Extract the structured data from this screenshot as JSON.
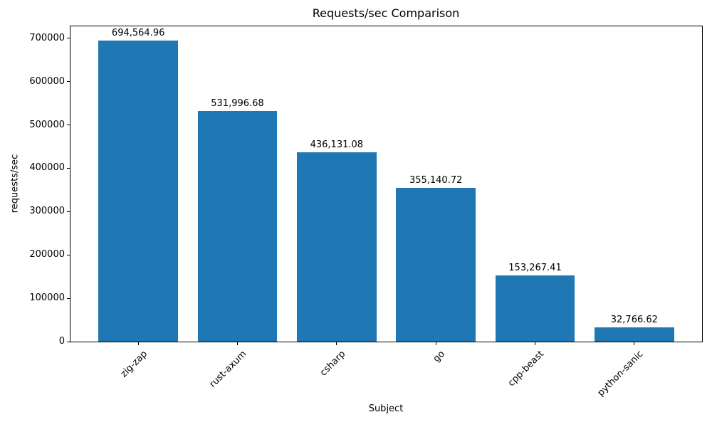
{
  "chart_data": {
    "type": "bar",
    "title": "Requests/sec Comparison",
    "xlabel": "Subject",
    "ylabel": "requests/sec",
    "categories": [
      "zig-zap",
      "rust-axum",
      "csharp",
      "go",
      "cpp-beast",
      "python-sanic"
    ],
    "values": [
      694564.96,
      531996.68,
      436131.08,
      355140.72,
      153267.41,
      32766.62
    ],
    "value_labels": [
      "694,564.96",
      "531,996.68",
      "436,131.08",
      "355,140.72",
      "153,267.41",
      "32,766.62"
    ],
    "yticks": [
      0,
      100000,
      200000,
      300000,
      400000,
      500000,
      600000,
      700000
    ],
    "ytick_labels": [
      "0",
      "100000",
      "200000",
      "300000",
      "400000",
      "500000",
      "600000",
      "700000"
    ],
    "ylim": [
      0,
      729293
    ],
    "bar_color": "#1f77b4",
    "grid": false,
    "legend": null,
    "xtick_rotation": 45
  }
}
